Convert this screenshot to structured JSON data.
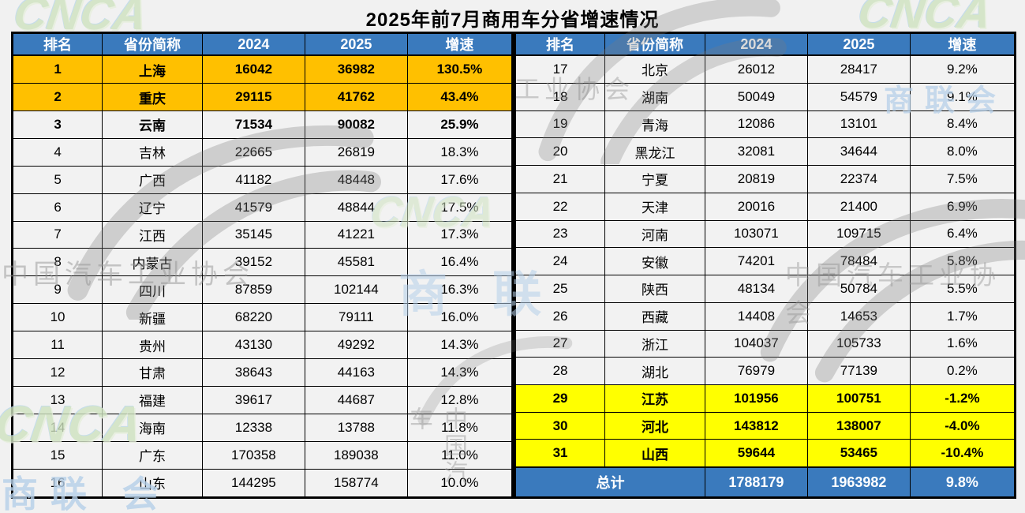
{
  "title": "2025年前7月商用车分省增速情况",
  "chart_data": {
    "type": "table",
    "title": "2025年前7月商用车分省增速情况",
    "columns": [
      "排名",
      "省份简称",
      "2024",
      "2025",
      "增速"
    ],
    "row_fields": [
      "rank",
      "province",
      "v2024",
      "v2025",
      "growth",
      "style"
    ],
    "left_rows": [
      [
        "1",
        "上海",
        "16042",
        "36982",
        "130.5%",
        "orange"
      ],
      [
        "2",
        "重庆",
        "29115",
        "41762",
        "43.4%",
        "orange"
      ],
      [
        "3",
        "云南",
        "71534",
        "90082",
        "25.9%",
        "bold"
      ],
      [
        "4",
        "吉林",
        "22665",
        "26819",
        "18.3%",
        ""
      ],
      [
        "5",
        "广西",
        "41182",
        "48448",
        "17.6%",
        ""
      ],
      [
        "6",
        "辽宁",
        "41579",
        "48844",
        "17.5%",
        ""
      ],
      [
        "7",
        "江西",
        "35145",
        "41221",
        "17.3%",
        ""
      ],
      [
        "8",
        "内蒙古",
        "39152",
        "45581",
        "16.4%",
        ""
      ],
      [
        "9",
        "四川",
        "87859",
        "102144",
        "16.3%",
        ""
      ],
      [
        "10",
        "新疆",
        "68220",
        "79111",
        "16.0%",
        ""
      ],
      [
        "11",
        "贵州",
        "43130",
        "49292",
        "14.3%",
        ""
      ],
      [
        "12",
        "甘肃",
        "38643",
        "44163",
        "14.3%",
        ""
      ],
      [
        "13",
        "福建",
        "39617",
        "44687",
        "12.8%",
        ""
      ],
      [
        "14",
        "海南",
        "12338",
        "13788",
        "11.8%",
        ""
      ],
      [
        "15",
        "广东",
        "170358",
        "189038",
        "11.0%",
        ""
      ],
      [
        "16",
        "山东",
        "144295",
        "158774",
        "10.0%",
        ""
      ]
    ],
    "right_rows": [
      [
        "17",
        "北京",
        "26012",
        "28417",
        "9.2%",
        ""
      ],
      [
        "18",
        "湖南",
        "50049",
        "54579",
        "9.1%",
        ""
      ],
      [
        "19",
        "青海",
        "12086",
        "13101",
        "8.4%",
        ""
      ],
      [
        "20",
        "黑龙江",
        "32081",
        "34644",
        "8.0%",
        ""
      ],
      [
        "21",
        "宁夏",
        "20819",
        "22374",
        "7.5%",
        ""
      ],
      [
        "22",
        "天津",
        "20016",
        "21400",
        "6.9%",
        ""
      ],
      [
        "23",
        "河南",
        "103071",
        "109715",
        "6.4%",
        ""
      ],
      [
        "24",
        "安徽",
        "74201",
        "78484",
        "5.8%",
        ""
      ],
      [
        "25",
        "陕西",
        "48134",
        "50784",
        "5.5%",
        ""
      ],
      [
        "26",
        "西藏",
        "14408",
        "14653",
        "1.7%",
        ""
      ],
      [
        "27",
        "浙江",
        "104037",
        "105733",
        "1.6%",
        ""
      ],
      [
        "28",
        "湖北",
        "76979",
        "77139",
        "0.2%",
        ""
      ],
      [
        "29",
        "江苏",
        "101956",
        "100751",
        "-1.2%",
        "yellow"
      ],
      [
        "30",
        "河北",
        "143812",
        "138007",
        "-4.0%",
        "yellow"
      ],
      [
        "31",
        "山西",
        "59644",
        "53465",
        "-10.4%",
        "yellow"
      ]
    ],
    "total_row": {
      "label": "总计",
      "v2024": "1788179",
      "v2025": "1963982",
      "growth": "9.8%"
    },
    "legend_note_colors": {
      "header_blue": "#3a7abd",
      "top_growth_orange": "#ffc000",
      "negative_growth_yellow": "#ffff00",
      "row_background": "#f2f2f2",
      "border_black": "#000000"
    }
  },
  "watermarks": {
    "cnca": "CNCA",
    "caam_full": "中国汽车工业协会",
    "caam_partial_right": "工业协会",
    "caam_partial_car": "中国汽车",
    "slh": "商联会",
    "slh_partial": "商 联",
    "slh_bottom": "商联 会"
  }
}
